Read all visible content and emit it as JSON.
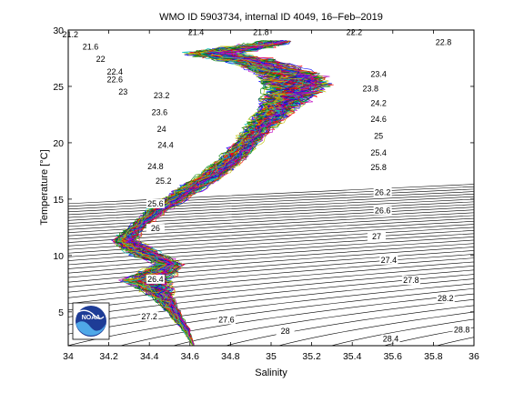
{
  "chart_data": {
    "type": "line",
    "title": "WMO ID 5903734, internal ID 4049, 16–Feb–2019",
    "xlabel": "Salinity",
    "ylabel": "Temperature [°C]",
    "xlim": [
      34,
      36
    ],
    "ylim": [
      2,
      30
    ],
    "xticks": [
      34,
      34.2,
      34.4,
      34.6,
      34.8,
      35,
      35.2,
      35.4,
      35.6,
      35.8,
      36
    ],
    "xtick_labels": [
      "34",
      "34.2",
      "34.4",
      "34.6",
      "34.8",
      "35",
      "35.2",
      "35.4",
      "35.6",
      "35.8",
      "36"
    ],
    "yticks": [
      5,
      10,
      15,
      20,
      25,
      30
    ],
    "ytick_labels": [
      "5",
      "10",
      "15",
      "20",
      "25",
      "30"
    ],
    "grid": false,
    "density_contours": {
      "min": 21.2,
      "max": 29.6,
      "step": 0.2,
      "color": "#000000",
      "labels": [
        {
          "text": "21.2",
          "s": 34.01,
          "t": 29.6
        },
        {
          "text": "21.6",
          "s": 34.11,
          "t": 28.5
        },
        {
          "text": "22",
          "s": 34.16,
          "t": 27.4
        },
        {
          "text": "22.4",
          "s": 34.23,
          "t": 26.3
        },
        {
          "text": "22.6",
          "s": 34.23,
          "t": 25.6
        },
        {
          "text": "23",
          "s": 34.27,
          "t": 24.5
        },
        {
          "text": "23.2",
          "s": 34.46,
          "t": 24.2
        },
        {
          "text": "23.6",
          "s": 34.45,
          "t": 22.7
        },
        {
          "text": "24",
          "s": 34.46,
          "t": 21.2
        },
        {
          "text": "24.4",
          "s": 34.48,
          "t": 19.8
        },
        {
          "text": "24.8",
          "s": 34.43,
          "t": 17.9
        },
        {
          "text": "25.2",
          "s": 34.47,
          "t": 16.6
        },
        {
          "text": "25.6",
          "s": 34.43,
          "t": 14.6
        },
        {
          "text": "26",
          "s": 34.43,
          "t": 12.4
        },
        {
          "text": "26.4",
          "s": 34.43,
          "t": 7.9
        },
        {
          "text": "27.2",
          "s": 34.4,
          "t": 4.6
        },
        {
          "text": "27.6",
          "s": 34.78,
          "t": 4.3
        },
        {
          "text": "28",
          "s": 35.07,
          "t": 3.3
        },
        {
          "text": "28.4",
          "s": 35.59,
          "t": 2.6
        },
        {
          "text": "28.8",
          "s": 35.94,
          "t": 3.4
        },
        {
          "text": "28.2",
          "s": 35.86,
          "t": 6.2
        },
        {
          "text": "27.8",
          "s": 35.69,
          "t": 7.8
        },
        {
          "text": "27.4",
          "s": 35.58,
          "t": 9.6
        },
        {
          "text": "27",
          "s": 35.52,
          "t": 11.7
        },
        {
          "text": "26.6",
          "s": 35.55,
          "t": 14.0
        },
        {
          "text": "26.2",
          "s": 35.55,
          "t": 15.6
        },
        {
          "text": "25.8",
          "s": 35.53,
          "t": 17.8
        },
        {
          "text": "25.4",
          "s": 35.53,
          "t": 19.1
        },
        {
          "text": "25",
          "s": 35.53,
          "t": 20.6
        },
        {
          "text": "24.6",
          "s": 35.53,
          "t": 22.1
        },
        {
          "text": "24.2",
          "s": 35.53,
          "t": 23.5
        },
        {
          "text": "23.8",
          "s": 35.49,
          "t": 24.8
        },
        {
          "text": "23.4",
          "s": 35.53,
          "t": 26.1
        },
        {
          "text": "22.8",
          "s": 35.85,
          "t": 28.9
        },
        {
          "text": "22.2",
          "s": 35.41,
          "t": 29.8
        },
        {
          "text": "21.8",
          "s": 34.95,
          "t": 29.8
        },
        {
          "text": "21.4",
          "s": 34.63,
          "t": 29.8
        }
      ]
    },
    "profile_envelope": {
      "description_points_salinity_temperature": [
        [
          34.62,
          2.0
        ],
        [
          34.58,
          3.4
        ],
        [
          34.52,
          5.0
        ],
        [
          34.46,
          6.5
        ],
        [
          34.38,
          7.8
        ],
        [
          34.5,
          9.2
        ],
        [
          34.36,
          10.4
        ],
        [
          34.28,
          11.3
        ],
        [
          34.33,
          12.4
        ],
        [
          34.44,
          14.0
        ],
        [
          34.57,
          15.6
        ],
        [
          34.7,
          17.0
        ],
        [
          34.8,
          18.4
        ],
        [
          34.88,
          20.0
        ],
        [
          34.95,
          21.5
        ],
        [
          35.02,
          22.8
        ],
        [
          35.08,
          24.0
        ],
        [
          35.13,
          25.0
        ],
        [
          35.1,
          26.0
        ],
        [
          34.9,
          27.3
        ],
        [
          34.7,
          27.9
        ],
        [
          34.9,
          28.5
        ],
        [
          35.05,
          29.0
        ]
      ],
      "width_salinity": [
        0.0,
        0.03,
        0.05,
        0.09,
        0.2,
        0.1,
        0.12,
        0.1,
        0.06,
        0.08,
        0.1,
        0.1,
        0.1,
        0.1,
        0.12,
        0.15,
        0.2,
        0.25,
        0.25,
        0.2,
        0.2,
        0.15,
        0.1
      ]
    },
    "series_colors": [
      "#0000ff",
      "#008000",
      "#ff0000",
      "#00bfbf",
      "#bf00bf",
      "#bfbf00",
      "#404040"
    ],
    "profile_count": 90,
    "logo": {
      "text": "NOAA"
    }
  }
}
